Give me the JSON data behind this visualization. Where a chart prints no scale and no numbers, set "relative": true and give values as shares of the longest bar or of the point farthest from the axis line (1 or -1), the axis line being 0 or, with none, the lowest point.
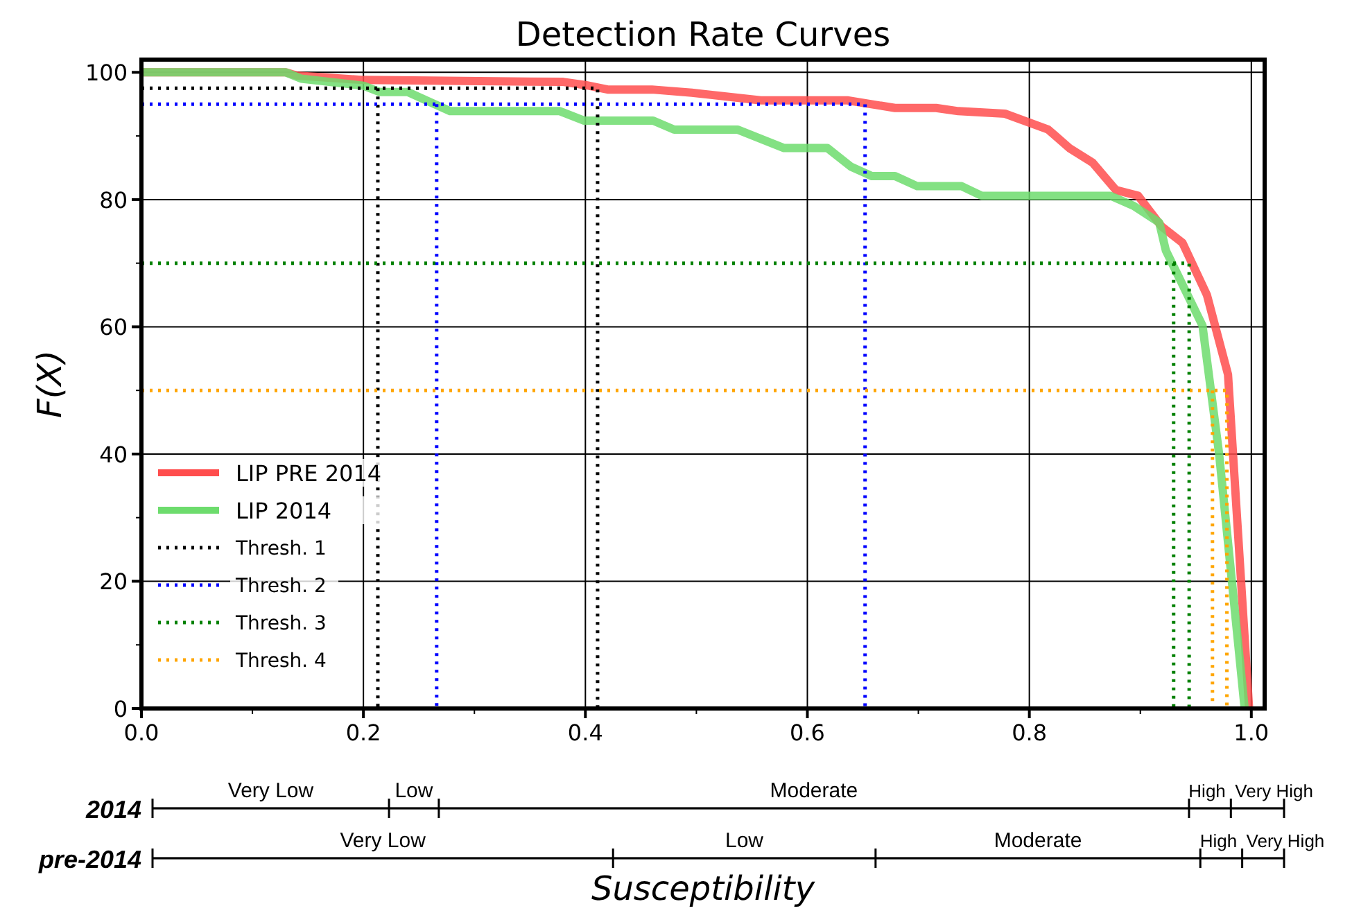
{
  "chart_data": [
    {
      "type": "line",
      "title": "Detection Rate Curves",
      "xlabel": "Susceptibility",
      "ylabel": "F(X)",
      "xlim": [
        0,
        1.012
      ],
      "ylim": [
        0,
        102
      ],
      "xticks": [
        {
          "value": 0,
          "label": "0.0"
        },
        {
          "value": 0.1,
          "label": null
        },
        {
          "value": 0.2,
          "label": "0.2"
        },
        {
          "value": 0.3,
          "label": null
        },
        {
          "value": 0.4,
          "label": "0.4"
        },
        {
          "value": 0.5,
          "label": null
        },
        {
          "value": 0.6,
          "label": "0.6"
        },
        {
          "value": 0.7,
          "label": null
        },
        {
          "value": 0.8,
          "label": "0.8"
        },
        {
          "value": 0.9,
          "label": null
        },
        {
          "value": 1,
          "label": "1.0"
        }
      ],
      "yticks": [
        0,
        {
          "value": 10,
          "label": null
        },
        20,
        {
          "value": 30,
          "label": null
        },
        40,
        {
          "value": 50,
          "label": null
        },
        60,
        {
          "value": 70,
          "label": null
        },
        80,
        {
          "value": 90,
          "label": null
        },
        100
      ],
      "grid": true,
      "legend": "bottom left",
      "line_style": "solid",
      "marker": "none",
      "series": [
        {
          "name": "LIP PRE 2014",
          "color": "#ff4d4d",
          "x": [
            0,
            0.13,
            0.14,
            0.2,
            0.38,
            0.4,
            0.42,
            0.46,
            0.496,
            0.558,
            0.636,
            0.679,
            0.716,
            0.736,
            0.778,
            0.817,
            0.836,
            0.857,
            0.878,
            0.898,
            0.919,
            0.938,
            0.96,
            0.979,
            0.998
          ],
          "values": [
            100,
            100,
            99.5,
            98.8,
            98.5,
            98,
            97.3,
            97.3,
            96.8,
            95.6,
            95.6,
            94.4,
            94.4,
            93.9,
            93.5,
            91,
            88.1,
            85.8,
            81.5,
            80.6,
            75.8,
            73.2,
            65,
            52.5,
            0
          ]
        },
        {
          "name": "LIP 2014",
          "color": "#6ddc6d",
          "x": [
            0,
            0.13,
            0.144,
            0.2,
            0.215,
            0.24,
            0.278,
            0.377,
            0.399,
            0.461,
            0.48,
            0.537,
            0.579,
            0.618,
            0.639,
            0.658,
            0.679,
            0.699,
            0.739,
            0.757,
            0.873,
            0.894,
            0.917,
            0.923,
            0.956,
            0.971,
            0.994
          ],
          "values": [
            100,
            100,
            99,
            97.9,
            96.9,
            96.9,
            93.9,
            93.9,
            92.4,
            92.4,
            91,
            91,
            88.1,
            88.1,
            85.2,
            83.7,
            83.7,
            82.1,
            82.1,
            80.6,
            80.6,
            79,
            76.4,
            72,
            60.2,
            40,
            0
          ]
        },
        {
          "name": "Thresh. 1",
          "color": "#000000",
          "line_style": "dotted",
          "x": [
            0,
            0.411,
            0.411
          ],
          "values": [
            97.5,
            97.5,
            0
          ]
        },
        {
          "color": "#000000",
          "line_style": "dotted",
          "x": [
            0.213,
            0.213
          ],
          "values": [
            97.5,
            0
          ]
        },
        {
          "name": "Thresh. 2",
          "color": "#0000ff",
          "line_style": "dotted",
          "x": [
            0,
            0.652,
            0.652
          ],
          "values": [
            95,
            95,
            0
          ]
        },
        {
          "color": "#0000ff",
          "line_style": "dotted",
          "x": [
            0.266,
            0.266
          ],
          "values": [
            95,
            0
          ]
        },
        {
          "name": "Thresh. 3",
          "color": "#008000",
          "line_style": "dotted",
          "x": [
            0,
            0.944,
            0.944
          ],
          "values": [
            70,
            70,
            0
          ]
        },
        {
          "color": "#008000",
          "line_style": "dotted",
          "x": [
            0.93,
            0.93
          ],
          "values": [
            70,
            0
          ]
        },
        {
          "name": "Thresh. 4",
          "color": "#ffa500",
          "line_style": "dotted",
          "x": [
            0,
            0.978,
            0.978
          ],
          "values": [
            50,
            50,
            0
          ]
        },
        {
          "color": "#ffa500",
          "line_style": "dotted",
          "x": [
            0.965,
            0.965
          ],
          "values": [
            50,
            0
          ]
        }
      ]
    },
    {
      "type": "bar",
      "orientation": "horizontal",
      "stacked": true,
      "relative": true,
      "tick_labels": "y",
      "categories": [
        "2014"
      ],
      "series": [
        {
          "name": "Very Low",
          "color": "#000000",
          "values": [
            0.209
          ]
        },
        {
          "name": "Low",
          "color": "#000000",
          "values": [
            0.044
          ]
        },
        {
          "name": "Moderate",
          "color": "#000000",
          "values": [
            0.663
          ]
        },
        {
          "name": "High",
          "color": "#000000",
          "values": [
            0.037
          ]
        },
        {
          "name": "Very High",
          "color": "#000000",
          "values": [
            0.047
          ]
        }
      ]
    },
    {
      "type": "bar",
      "orientation": "horizontal",
      "stacked": true,
      "relative": true,
      "tick_labels": "y",
      "categories": [
        "pre-2014"
      ],
      "series": [
        {
          "name": "Very Low",
          "color": "#000000",
          "values": [
            0.407
          ]
        },
        {
          "name": "Low",
          "color": "#000000",
          "values": [
            0.232
          ]
        },
        {
          "name": "Moderate",
          "color": "#000000",
          "values": [
            0.287
          ]
        },
        {
          "name": "High",
          "color": "#000000",
          "values": [
            0.037
          ]
        },
        {
          "name": "Very High",
          "color": "#000000",
          "values": [
            0.037
          ]
        }
      ]
    }
  ]
}
